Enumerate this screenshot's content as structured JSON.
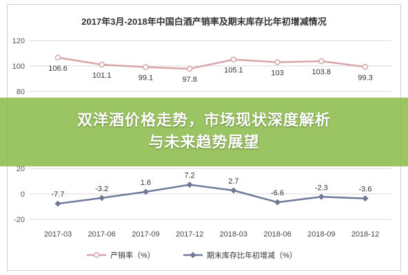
{
  "banner": {
    "line1": "双洋酒价格走势，市场现状深度解析",
    "line2": "与未来趋势展望"
  },
  "chart_data": {
    "type": "line",
    "title": "2017年3月-2018年中国白酒产销率及期末库存比年初增减情况",
    "categories": [
      "2017-03",
      "2017-06",
      "2017-09",
      "2017-12",
      "2018-03",
      "2018-06",
      "2018-09",
      "2018-12"
    ],
    "series": [
      {
        "name": "产销率（%）",
        "values": [
          106.6,
          101.1,
          99.1,
          97.8,
          105.1,
          103,
          103.8,
          99.3
        ],
        "color": "#d7a4a8",
        "marker": "circle"
      },
      {
        "name": "期末库存比年初增减（%）",
        "values": [
          -7.7,
          -3.2,
          1.6,
          7.2,
          2.7,
          -6.6,
          -2.3,
          -3.6
        ],
        "color": "#6f7898",
        "marker": "diamond"
      }
    ],
    "upper_axis": {
      "ticks": [
        80,
        100,
        120
      ],
      "ylim": [
        80,
        120
      ]
    },
    "lower_axis": {
      "ticks": [
        -20,
        0,
        20
      ],
      "ylim": [
        -20,
        20
      ]
    },
    "grid": true,
    "legend_position": "bottom"
  }
}
